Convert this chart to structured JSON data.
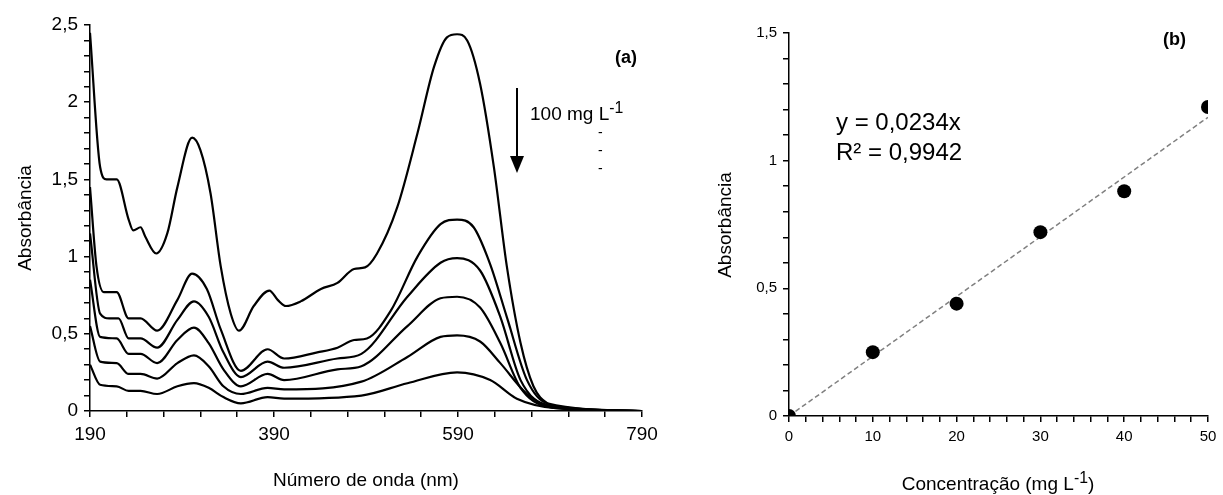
{
  "chart_data": [
    {
      "type": "line",
      "xlabel": "Número de onda (nm)",
      "ylabel": "Absorbância",
      "marker": "none",
      "line_style": "solid",
      "grid": false,
      "legend": false,
      "annotations": [
        "(a)",
        "100 mg L$^{-1}$",
        "-",
        "-",
        "-"
      ],
      "xlim": [
        190,
        790
      ],
      "xticks": [
        190,
        {
          "value": 230,
          "label": null
        },
        {
          "value": 270,
          "label": null
        },
        {
          "value": 310,
          "label": null
        },
        {
          "value": 350,
          "label": null
        },
        390,
        {
          "value": 430,
          "label": null
        },
        {
          "value": 470,
          "label": null
        },
        {
          "value": 510,
          "label": null
        },
        {
          "value": 550,
          "label": null
        },
        590,
        {
          "value": 630,
          "label": null
        },
        {
          "value": 670,
          "label": null
        },
        {
          "value": 710,
          "label": null
        },
        {
          "value": 750,
          "label": null
        },
        790
      ],
      "ylim": [
        0,
        2.5
      ],
      "yticks": [
        0,
        {
          "value": 0.1,
          "label": null
        },
        {
          "value": 0.2,
          "label": null
        },
        {
          "value": 0.3,
          "label": null
        },
        {
          "value": 0.4,
          "label": null
        },
        {
          "value": 0.5,
          "label": "0,5"
        },
        {
          "value": 0.6,
          "label": null
        },
        {
          "value": 0.7,
          "label": null
        },
        {
          "value": 0.8,
          "label": null
        },
        {
          "value": 0.9,
          "label": null
        },
        1,
        {
          "value": 1.1,
          "label": null
        },
        {
          "value": 1.2,
          "label": null
        },
        {
          "value": 1.3,
          "label": null
        },
        {
          "value": 1.4,
          "label": null
        },
        {
          "value": 1.5,
          "label": "1,5"
        },
        {
          "value": 1.6,
          "label": null
        },
        {
          "value": 1.7,
          "label": null
        },
        {
          "value": 1.8,
          "label": null
        },
        {
          "value": 1.9,
          "label": null
        },
        2,
        {
          "value": 2.1,
          "label": null
        },
        {
          "value": 2.2,
          "label": null
        },
        {
          "value": 2.3,
          "label": null
        },
        {
          "value": 2.4,
          "label": null
        },
        {
          "value": 2.5,
          "label": "2,5"
        }
      ],
      "series": [
        {
          "color": "#000000",
          "x": [
            190,
            201,
            208,
            219,
            232,
            237,
            245,
            250,
            262,
            274,
            285,
            301,
            310,
            321,
            332,
            343,
            352,
            368,
            385,
            394,
            403,
            419,
            441,
            459,
            477,
            489,
            502,
            524,
            546,
            564,
            578,
            589,
            600,
            614,
            629,
            643,
            658,
            672,
            687,
            708,
            790
          ],
          "values": [
            2.45,
            1.58,
            1.5,
            1.5,
            1.24,
            1.17,
            1.19,
            1.13,
            1.02,
            1.15,
            1.45,
            1.77,
            1.69,
            1.41,
            0.94,
            0.63,
            0.52,
            0.68,
            0.78,
            0.72,
            0.68,
            0.71,
            0.79,
            0.83,
            0.92,
            0.93,
            1.02,
            1.32,
            1.8,
            2.23,
            2.42,
            2.44,
            2.4,
            2.12,
            1.58,
            0.94,
            0.44,
            0.16,
            0.05,
            0.02,
            0.0
          ]
        },
        {
          "color": "#000000",
          "x": [
            190,
            197,
            205,
            219,
            232,
            245,
            263,
            285,
            301,
            317,
            332,
            354,
            383,
            401,
            437,
            459,
            477,
            491,
            517,
            546,
            571,
            589,
            607,
            625,
            643,
            665,
            687,
            790
          ],
          "values": [
            1.45,
            0.94,
            0.77,
            0.77,
            0.6,
            0.6,
            0.52,
            0.72,
            0.89,
            0.79,
            0.53,
            0.26,
            0.4,
            0.34,
            0.38,
            0.41,
            0.46,
            0.47,
            0.65,
            1.0,
            1.21,
            1.24,
            1.19,
            0.95,
            0.61,
            0.2,
            0.05,
            0.0
          ]
        },
        {
          "color": "#000000",
          "x": [
            190,
            201,
            211,
            221,
            232,
            245,
            263,
            285,
            303,
            319,
            335,
            354,
            383,
            401,
            459,
            485,
            535,
            571,
            589,
            614,
            636,
            658,
            687,
            790
          ],
          "values": [
            1.15,
            0.63,
            0.6,
            0.6,
            0.47,
            0.47,
            0.41,
            0.59,
            0.71,
            0.61,
            0.38,
            0.22,
            0.32,
            0.28,
            0.34,
            0.37,
            0.74,
            0.96,
            0.99,
            0.91,
            0.61,
            0.2,
            0.04,
            0.0
          ]
        },
        {
          "color": "#000000",
          "x": [
            190,
            201,
            219,
            232,
            245,
            263,
            285,
            303,
            319,
            335,
            354,
            383,
            401,
            459,
            485,
            535,
            571,
            589,
            614,
            636,
            658,
            687,
            790
          ],
          "values": [
            0.85,
            0.48,
            0.47,
            0.37,
            0.37,
            0.31,
            0.46,
            0.54,
            0.44,
            0.27,
            0.16,
            0.24,
            0.2,
            0.27,
            0.29,
            0.55,
            0.73,
            0.74,
            0.67,
            0.44,
            0.15,
            0.03,
            0.0
          ]
        },
        {
          "color": "#000000",
          "x": [
            190,
            201,
            219,
            232,
            245,
            263,
            285,
            303,
            319,
            335,
            354,
            383,
            401,
            485,
            535,
            571,
            589,
            614,
            636,
            665,
            694,
            790
          ],
          "values": [
            0.55,
            0.32,
            0.31,
            0.24,
            0.24,
            0.21,
            0.31,
            0.36,
            0.29,
            0.16,
            0.11,
            0.15,
            0.14,
            0.19,
            0.35,
            0.48,
            0.49,
            0.45,
            0.31,
            0.11,
            0.02,
            0.0
          ]
        },
        {
          "color": "#000000",
          "x": [
            190,
            201,
            219,
            232,
            245,
            263,
            285,
            303,
            319,
            335,
            354,
            383,
            401,
            485,
            535,
            589,
            625,
            654,
            694,
            790
          ],
          "values": [
            0.3,
            0.17,
            0.16,
            0.13,
            0.13,
            0.11,
            0.16,
            0.18,
            0.15,
            0.09,
            0.05,
            0.09,
            0.08,
            0.1,
            0.18,
            0.25,
            0.2,
            0.08,
            0.02,
            0.0
          ]
        }
      ]
    },
    {
      "type": "scatter",
      "xlabel": "Concentração (mg L$^{-1}$)",
      "ylabel": "Absorbância",
      "grid": false,
      "legend": false,
      "annotations": [
        "(b)",
        "y = 0,0234x",
        "R² = 0,9942"
      ],
      "xlim": [
        0,
        50
      ],
      "xticks": [
        0,
        {
          "value": 2,
          "label": null
        },
        {
          "value": 4,
          "label": null
        },
        {
          "value": 6,
          "label": null
        },
        {
          "value": 8,
          "label": null
        },
        10,
        {
          "value": 12,
          "label": null
        },
        {
          "value": 14,
          "label": null
        },
        {
          "value": 16,
          "label": null
        },
        {
          "value": 18,
          "label": null
        },
        20,
        {
          "value": 22,
          "label": null
        },
        {
          "value": 24,
          "label": null
        },
        {
          "value": 26,
          "label": null
        },
        {
          "value": 28,
          "label": null
        },
        30,
        {
          "value": 32,
          "label": null
        },
        {
          "value": 34,
          "label": null
        },
        {
          "value": 36,
          "label": null
        },
        {
          "value": 38,
          "label": null
        },
        40,
        {
          "value": 42,
          "label": null
        },
        {
          "value": 44,
          "label": null
        },
        {
          "value": 46,
          "label": null
        },
        {
          "value": 48,
          "label": null
        },
        50
      ],
      "ylim": [
        0,
        1.5
      ],
      "yticks": [
        0,
        {
          "value": 0.1,
          "label": null
        },
        {
          "value": 0.2,
          "label": null
        },
        {
          "value": 0.3,
          "label": null
        },
        {
          "value": 0.4,
          "label": null
        },
        {
          "value": 0.5,
          "label": "0,5"
        },
        {
          "value": 0.6,
          "label": null
        },
        {
          "value": 0.7,
          "label": null
        },
        {
          "value": 0.8,
          "label": null
        },
        {
          "value": 0.9,
          "label": null
        },
        1,
        {
          "value": 1.1,
          "label": null
        },
        {
          "value": 1.2,
          "label": null
        },
        {
          "value": 1.3,
          "label": null
        },
        {
          "value": 1.4,
          "label": null
        },
        {
          "value": 1.5,
          "label": "1,5"
        }
      ],
      "series": [
        {
          "type": "scatter",
          "color": "#000000",
          "marker": "circle",
          "x": [
            0,
            10,
            20,
            30,
            40,
            50
          ],
          "values": [
            0,
            0.25,
            0.44,
            0.72,
            0.88,
            1.21
          ]
        },
        {
          "type": "line",
          "color": "#808080",
          "marker": "none",
          "line_style": "dashed",
          "x": [
            0,
            50
          ],
          "values": [
            0,
            1.17
          ]
        }
      ]
    }
  ]
}
